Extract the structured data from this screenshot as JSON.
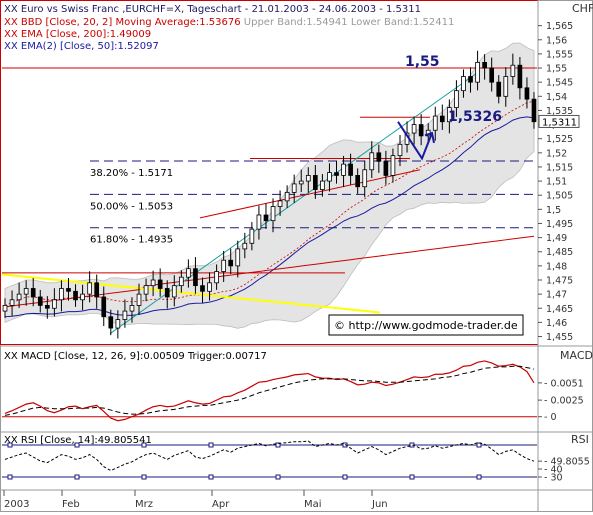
{
  "chart_data": {
    "type": "candlestick",
    "title": "Euro vs Swiss Franc ,EURCHF=X, Tageschart - 21.01.2003 - 24.06.2003 - 1.5311",
    "currency_label": "CHF",
    "watermark": "© http://www.godmode-trader.de",
    "x_labels": [
      "2003",
      "Feb",
      "Mrz",
      "Apr",
      "Mai",
      "Jun"
    ],
    "main": {
      "ylim": [
        1.452,
        1.567
      ],
      "ticks": [
        "1,565",
        "1,56",
        "1,555",
        "1,55",
        "1,545",
        "1,54",
        "1,535",
        "1,53",
        "1,525",
        "1,52",
        "1,515",
        "1,51",
        "1,505",
        "1,5",
        "1,495",
        "1,49",
        "1,485",
        "1,48",
        "1,475",
        "1,47",
        "1,465",
        "1,46",
        "1,455"
      ],
      "current_price_label": "1,5311",
      "legend": [
        {
          "text": "BBD [Close, 20, 2] Moving Average:1.53676",
          "extra": " Upper Band:1.54941 Lower Band:1.52411",
          "color": "#cc0000",
          "extra_color": "#9a9a9a"
        },
        {
          "text": "EMA [Close, 200]:1.49009",
          "color": "#cc0000"
        },
        {
          "text": "EMA(2) [Close, 50]:1.52097",
          "color": "#1a1aa0"
        }
      ],
      "fib_levels": [
        {
          "label": "38.20% - 1.5171",
          "value": 1.5171
        },
        {
          "label": "50.00% - 1.5053",
          "value": 1.5053
        },
        {
          "label": "61.80% - 1.4935",
          "value": 1.4935
        }
      ],
      "annotations": [
        {
          "text": "1,55",
          "value": 1.55
        },
        {
          "text": "1,5326",
          "value": 1.5326
        }
      ],
      "closes": [
        1.466,
        1.468,
        1.47,
        1.472,
        1.469,
        1.466,
        1.465,
        1.468,
        1.472,
        1.471,
        1.468,
        1.47,
        1.474,
        1.469,
        1.462,
        1.458,
        1.461,
        1.464,
        1.466,
        1.47,
        1.473,
        1.475,
        1.472,
        1.469,
        1.473,
        1.476,
        1.479,
        1.473,
        1.471,
        1.474,
        1.478,
        1.482,
        1.48,
        1.486,
        1.488,
        1.493,
        1.498,
        1.496,
        1.501,
        1.503,
        1.506,
        1.509,
        1.51,
        1.512,
        1.507,
        1.51,
        1.513,
        1.512,
        1.516,
        1.512,
        1.508,
        1.514,
        1.52,
        1.517,
        1.512,
        1.519,
        1.523,
        1.527,
        1.53,
        1.526,
        1.528,
        1.533,
        1.531,
        1.536,
        1.542,
        1.547,
        1.545,
        1.552,
        1.55,
        1.545,
        1.54,
        1.547,
        1.551,
        1.543,
        1.539,
        1.531
      ]
    },
    "macd": {
      "label": "MACD [Close, 12, 26, 9]:0.00509 Trigger:0.00717",
      "axis_label": "MACD",
      "ylim": [
        -0.002,
        0.0105
      ],
      "ticks": [
        "0.0051",
        "0.0025",
        "0"
      ],
      "macd": [
        0.0005,
        0.0009,
        0.0014,
        0.0019,
        0.0021,
        0.0016,
        0.0009,
        0.0006,
        0.001,
        0.0015,
        0.0016,
        0.0012,
        0.0015,
        0.0017,
        0.0008,
        -0.0002,
        -0.0006,
        -0.0004,
        0.0,
        0.0004,
        0.001,
        0.0015,
        0.0017,
        0.0015,
        0.0016,
        0.002,
        0.0024,
        0.0021,
        0.0019,
        0.002,
        0.0025,
        0.003,
        0.0031,
        0.0036,
        0.004,
        0.0046,
        0.0052,
        0.0053,
        0.0056,
        0.0058,
        0.006,
        0.0063,
        0.0064,
        0.0065,
        0.006,
        0.0058,
        0.0058,
        0.0056,
        0.0057,
        0.0053,
        0.0048,
        0.0049,
        0.0052,
        0.0051,
        0.0047,
        0.0049,
        0.0052,
        0.0056,
        0.006,
        0.0059,
        0.006,
        0.0064,
        0.0064,
        0.0066,
        0.007,
        0.0076,
        0.0077,
        0.0082,
        0.0084,
        0.0081,
        0.0076,
        0.0077,
        0.0079,
        0.0075,
        0.0068,
        0.0051
      ],
      "trigger": [
        0.0002,
        0.0004,
        0.0007,
        0.001,
        0.0013,
        0.0014,
        0.0013,
        0.0012,
        0.0012,
        0.0012,
        0.0013,
        0.0013,
        0.0013,
        0.0014,
        0.0013,
        0.001,
        0.0007,
        0.0005,
        0.0004,
        0.0004,
        0.0005,
        0.0007,
        0.0009,
        0.001,
        0.0011,
        0.0013,
        0.0015,
        0.0016,
        0.0017,
        0.0017,
        0.0019,
        0.0021,
        0.0023,
        0.0025,
        0.0028,
        0.0032,
        0.0036,
        0.0039,
        0.0042,
        0.0045,
        0.0048,
        0.0051,
        0.0053,
        0.0055,
        0.0056,
        0.0057,
        0.0057,
        0.0057,
        0.0057,
        0.0056,
        0.0055,
        0.0054,
        0.0054,
        0.0053,
        0.0052,
        0.0052,
        0.0052,
        0.0053,
        0.0054,
        0.0055,
        0.0056,
        0.0057,
        0.0059,
        0.006,
        0.0062,
        0.0065,
        0.0067,
        0.007,
        0.0073,
        0.0074,
        0.0075,
        0.0075,
        0.0076,
        0.0076,
        0.0074,
        0.00717
      ]
    },
    "rsi": {
      "label": "RSI [Close, 14]:49.805541",
      "axis_label": "RSI",
      "ylim": [
        15,
        85
      ],
      "ticks": [
        "49.8055",
        "40",
        "30"
      ],
      "levels": [
        70,
        30
      ],
      "values": [
        52,
        55,
        58,
        60,
        55,
        50,
        48,
        53,
        58,
        56,
        52,
        54,
        58,
        52,
        43,
        38,
        42,
        46,
        49,
        54,
        58,
        60,
        56,
        52,
        57,
        60,
        63,
        55,
        53,
        56,
        60,
        64,
        61,
        66,
        68,
        70,
        72,
        69,
        71,
        72,
        73,
        74,
        74,
        75,
        68,
        70,
        72,
        70,
        72,
        66,
        60,
        64,
        68,
        64,
        58,
        62,
        66,
        68,
        70,
        65,
        66,
        69,
        66,
        68,
        70,
        72,
        70,
        73,
        71,
        65,
        58,
        62,
        64,
        58,
        53,
        49.8
      ]
    }
  }
}
